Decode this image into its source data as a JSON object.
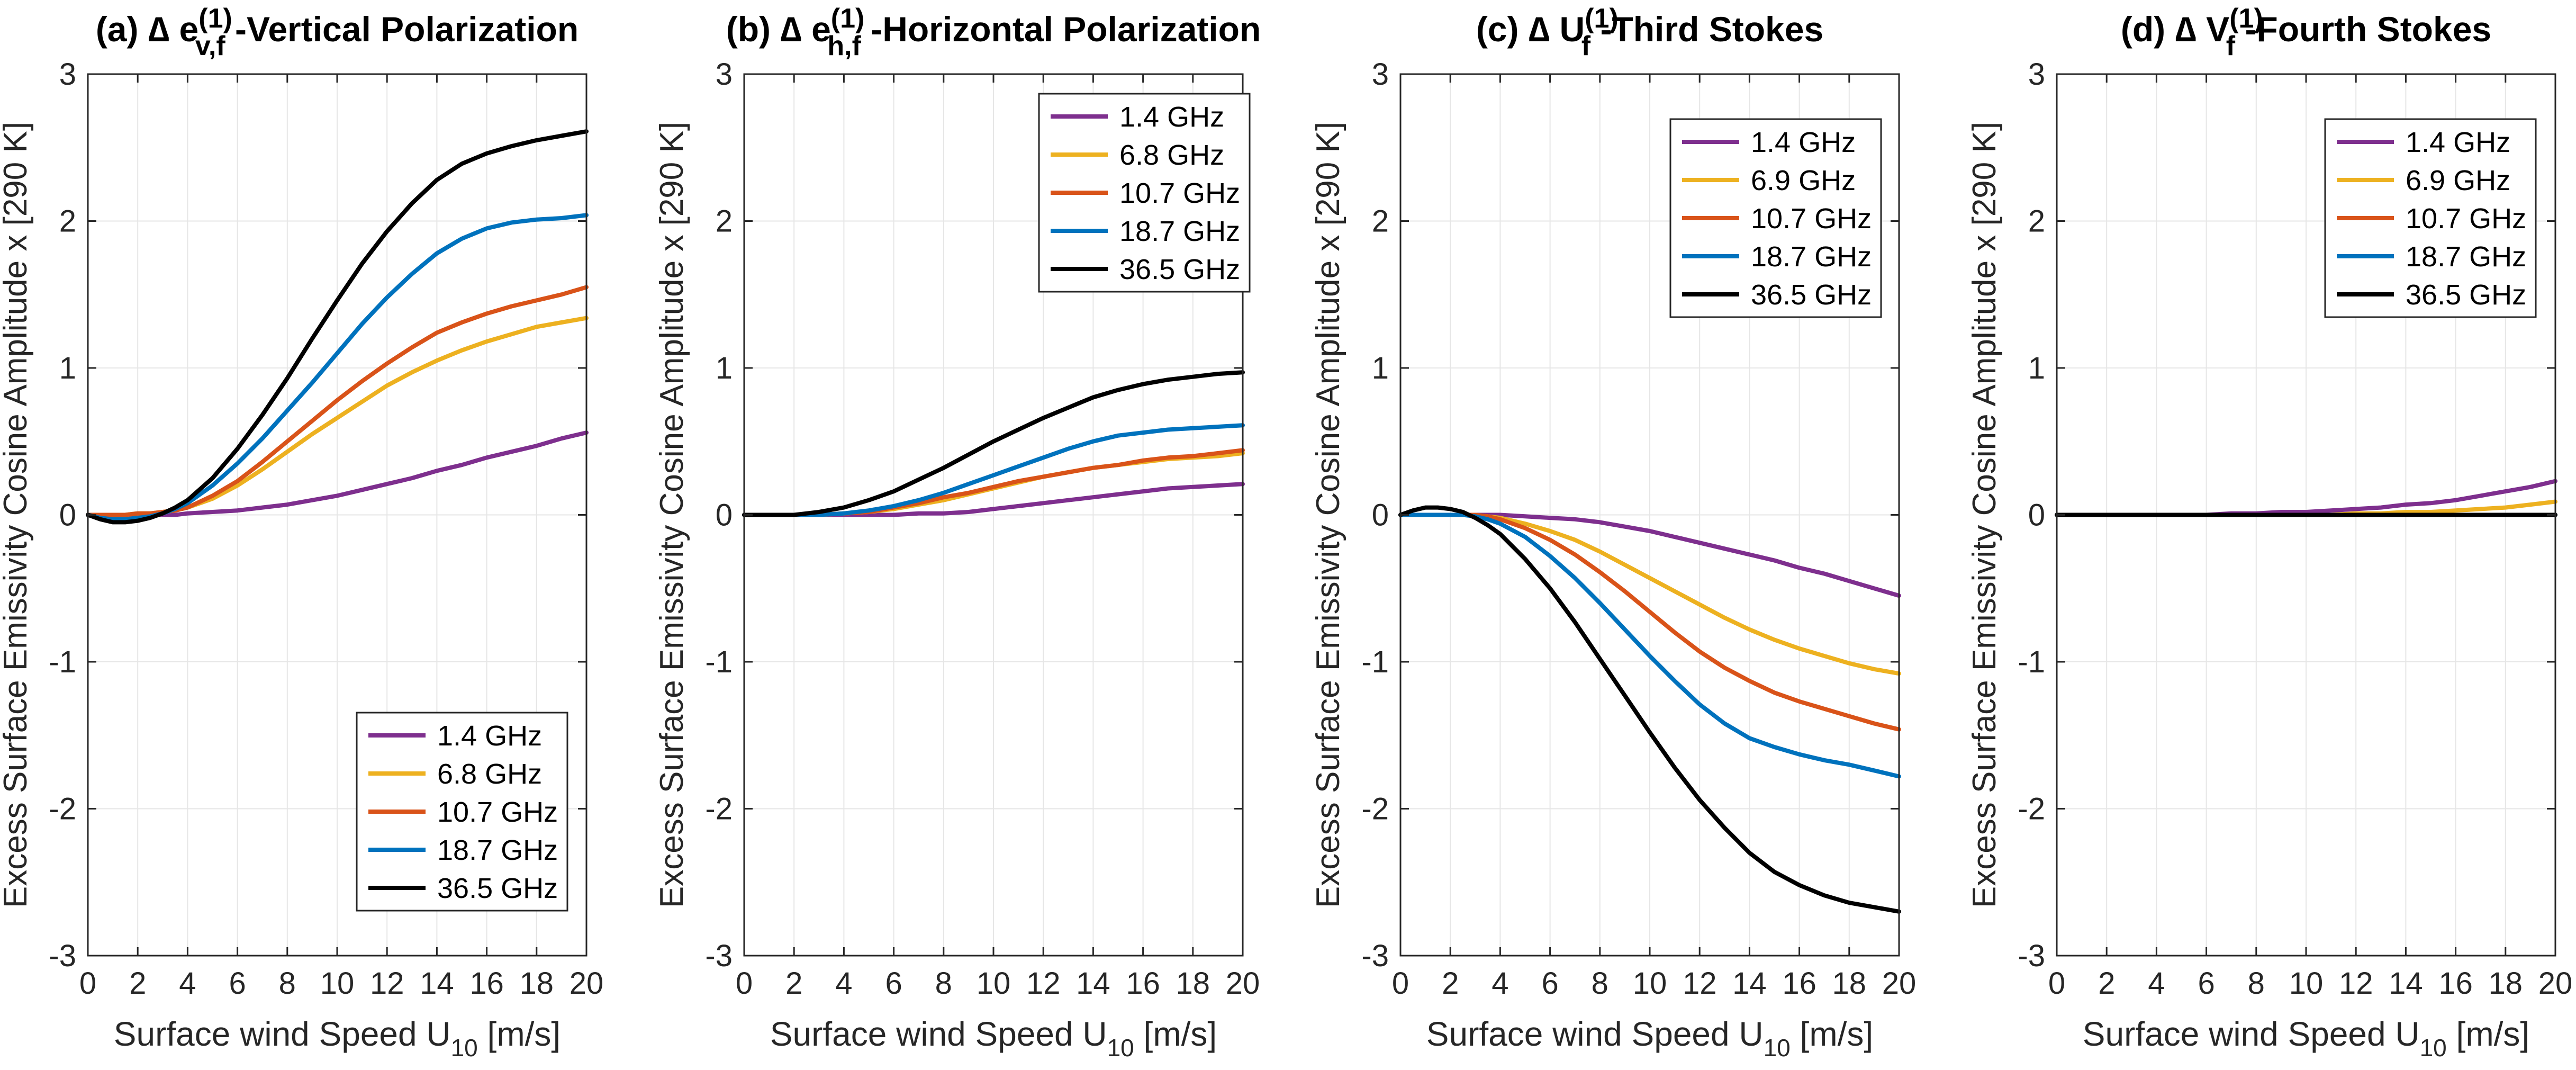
{
  "figure": {
    "colors": {
      "purple": "#7E2F8E",
      "yellow": "#EDB120",
      "orange": "#D95319",
      "blue": "#0072BD",
      "black": "#000000",
      "grid": "#E6E6E6",
      "axis": "#262626"
    }
  },
  "chart_data": [
    {
      "type": "line",
      "title": {
        "prefix": "(a) ∆ e",
        "sub": "v,f",
        "sup": "(1)",
        "suffix": " -Vertical Polarization"
      },
      "xlabel": {
        "main": "Surface wind Speed U",
        "sub": "10",
        "unit": " [m/s]"
      },
      "ylabel": "Excess Surface Emissivity Cosine Amplitude x [290 K]",
      "xlim": [
        0,
        20
      ],
      "ylim": [
        -3,
        3
      ],
      "xticks": [
        "0",
        "2",
        "4",
        "6",
        "8",
        "10",
        "12",
        "14",
        "16",
        "18",
        "20"
      ],
      "yticks": [
        "-3",
        "-2",
        "-1",
        "0",
        "1",
        "2",
        "3"
      ],
      "grid": true,
      "legend_position": "bottom-right",
      "x": [
        0,
        0.5,
        1,
        1.5,
        2,
        2.5,
        3,
        3.5,
        4,
        5,
        6,
        7,
        8,
        9,
        10,
        11,
        12,
        13,
        14,
        15,
        16,
        17,
        18,
        19,
        20
      ],
      "series": [
        {
          "name": "1.4 GHz",
          "color": "purple",
          "values": [
            0,
            0,
            0,
            0,
            0,
            0,
            0,
            0,
            0.01,
            0.02,
            0.03,
            0.05,
            0.07,
            0.1,
            0.13,
            0.17,
            0.21,
            0.25,
            0.3,
            0.34,
            0.39,
            0.43,
            0.47,
            0.52,
            0.56
          ]
        },
        {
          "name": "6.8 GHz",
          "color": "yellow",
          "values": [
            0,
            0,
            0,
            0,
            0.01,
            0.01,
            0.02,
            0.03,
            0.05,
            0.11,
            0.2,
            0.31,
            0.43,
            0.55,
            0.66,
            0.77,
            0.88,
            0.97,
            1.05,
            1.12,
            1.18,
            1.23,
            1.28,
            1.31,
            1.34
          ]
        },
        {
          "name": "10.7 GHz",
          "color": "orange",
          "values": [
            0,
            0,
            0,
            0,
            0.01,
            0.01,
            0.02,
            0.03,
            0.05,
            0.13,
            0.23,
            0.36,
            0.5,
            0.64,
            0.78,
            0.91,
            1.03,
            1.14,
            1.24,
            1.31,
            1.37,
            1.42,
            1.46,
            1.5,
            1.55
          ]
        },
        {
          "name": "18.7 GHz",
          "color": "blue",
          "values": [
            0,
            -0.02,
            -0.03,
            -0.03,
            -0.02,
            -0.01,
            0.01,
            0.04,
            0.08,
            0.2,
            0.35,
            0.52,
            0.71,
            0.9,
            1.1,
            1.3,
            1.48,
            1.64,
            1.78,
            1.88,
            1.95,
            1.99,
            2.01,
            2.02,
            2.04
          ]
        },
        {
          "name": "36.5 GHz",
          "color": "black",
          "values": [
            0,
            -0.03,
            -0.05,
            -0.05,
            -0.04,
            -0.02,
            0.01,
            0.05,
            0.1,
            0.25,
            0.45,
            0.68,
            0.93,
            1.2,
            1.46,
            1.71,
            1.93,
            2.12,
            2.28,
            2.39,
            2.46,
            2.51,
            2.55,
            2.58,
            2.61
          ]
        }
      ]
    },
    {
      "type": "line",
      "title": {
        "prefix": "(b) ∆ e",
        "sub": "h,f",
        "sup": "(1)",
        "suffix": " -Horizontal Polarization"
      },
      "xlabel": {
        "main": "Surface wind Speed U",
        "sub": "10",
        "unit": " [m/s]"
      },
      "ylabel": "Excess Surface Emissivity Cosine Amplitude x [290 K]",
      "xlim": [
        0,
        20
      ],
      "ylim": [
        -3,
        3
      ],
      "xticks": [
        "0",
        "2",
        "4",
        "6",
        "8",
        "10",
        "12",
        "14",
        "16",
        "18",
        "20"
      ],
      "yticks": [
        "-3",
        "-2",
        "-1",
        "0",
        "1",
        "2",
        "3"
      ],
      "grid": true,
      "legend_position": "top-right",
      "x": [
        0,
        1,
        2,
        3,
        4,
        5,
        6,
        7,
        8,
        9,
        10,
        11,
        12,
        13,
        14,
        15,
        16,
        17,
        18,
        19,
        20
      ],
      "series": [
        {
          "name": "1.4 GHz",
          "color": "purple",
          "values": [
            0,
            0,
            0,
            0,
            0,
            0,
            0,
            0.01,
            0.01,
            0.02,
            0.04,
            0.06,
            0.08,
            0.1,
            0.12,
            0.14,
            0.16,
            0.18,
            0.19,
            0.2,
            0.21
          ]
        },
        {
          "name": "6.8 GHz",
          "color": "yellow",
          "values": [
            0,
            0,
            0,
            0,
            0.01,
            0.02,
            0.04,
            0.07,
            0.1,
            0.14,
            0.18,
            0.22,
            0.26,
            0.29,
            0.32,
            0.34,
            0.36,
            0.38,
            0.39,
            0.4,
            0.42
          ]
        },
        {
          "name": "10.7 GHz",
          "color": "orange",
          "values": [
            0,
            0,
            0,
            0,
            0.01,
            0.02,
            0.05,
            0.08,
            0.12,
            0.15,
            0.19,
            0.23,
            0.26,
            0.29,
            0.32,
            0.34,
            0.37,
            0.39,
            0.4,
            0.42,
            0.44
          ]
        },
        {
          "name": "18.7 GHz",
          "color": "blue",
          "values": [
            0,
            0,
            0,
            0,
            0.01,
            0.03,
            0.06,
            0.1,
            0.15,
            0.21,
            0.27,
            0.33,
            0.39,
            0.45,
            0.5,
            0.54,
            0.56,
            0.58,
            0.59,
            0.6,
            0.61
          ]
        },
        {
          "name": "36.5 GHz",
          "color": "black",
          "values": [
            0,
            0,
            0,
            0.02,
            0.05,
            0.1,
            0.16,
            0.24,
            0.32,
            0.41,
            0.5,
            0.58,
            0.66,
            0.73,
            0.8,
            0.85,
            0.89,
            0.92,
            0.94,
            0.96,
            0.97
          ]
        }
      ]
    },
    {
      "type": "line",
      "title": {
        "prefix": "(c) ∆ U",
        "sub": "f",
        "sup": "(1)",
        "suffix": " -Third Stokes"
      },
      "xlabel": {
        "main": "Surface wind Speed U",
        "sub": "10",
        "unit": " [m/s]"
      },
      "ylabel": "Excess Surface Emissivity Cosine Amplitude x [290 K]",
      "xlim": [
        0,
        20
      ],
      "ylim": [
        -3,
        3
      ],
      "xticks": [
        "0",
        "2",
        "4",
        "6",
        "8",
        "10",
        "12",
        "14",
        "16",
        "18",
        "20"
      ],
      "yticks": [
        "-3",
        "-2",
        "-1",
        "0",
        "1",
        "2",
        "3"
      ],
      "grid": true,
      "legend_position": "top-right",
      "x": [
        0,
        0.5,
        1,
        1.5,
        2,
        2.5,
        3,
        3.5,
        4,
        5,
        6,
        7,
        8,
        9,
        10,
        11,
        12,
        13,
        14,
        15,
        16,
        17,
        18,
        19,
        20
      ],
      "series": [
        {
          "name": "1.4 GHz",
          "color": "purple",
          "values": [
            0,
            0,
            0,
            0,
            0,
            0,
            0,
            0,
            0,
            -0.01,
            -0.02,
            -0.03,
            -0.05,
            -0.08,
            -0.11,
            -0.15,
            -0.19,
            -0.23,
            -0.27,
            -0.31,
            -0.36,
            -0.4,
            -0.45,
            -0.5,
            -0.55
          ]
        },
        {
          "name": "6.9 GHz",
          "color": "yellow",
          "values": [
            0,
            0,
            0,
            0,
            0,
            0,
            0,
            -0.01,
            -0.02,
            -0.06,
            -0.11,
            -0.17,
            -0.25,
            -0.34,
            -0.43,
            -0.52,
            -0.61,
            -0.7,
            -0.78,
            -0.85,
            -0.91,
            -0.96,
            -1.01,
            -1.05,
            -1.08
          ]
        },
        {
          "name": "10.7 GHz",
          "color": "orange",
          "values": [
            0,
            0,
            0,
            0,
            0,
            0,
            0,
            -0.01,
            -0.03,
            -0.09,
            -0.17,
            -0.27,
            -0.39,
            -0.52,
            -0.66,
            -0.8,
            -0.93,
            -1.04,
            -1.13,
            -1.21,
            -1.27,
            -1.32,
            -1.37,
            -1.42,
            -1.46
          ]
        },
        {
          "name": "18.7 GHz",
          "color": "blue",
          "values": [
            0,
            0,
            0,
            0,
            0,
            0,
            -0.01,
            -0.03,
            -0.06,
            -0.15,
            -0.28,
            -0.43,
            -0.6,
            -0.78,
            -0.96,
            -1.13,
            -1.29,
            -1.42,
            -1.52,
            -1.58,
            -1.63,
            -1.67,
            -1.7,
            -1.74,
            -1.78
          ]
        },
        {
          "name": "36.5 GHz",
          "color": "black",
          "values": [
            0,
            0.03,
            0.05,
            0.05,
            0.04,
            0.02,
            -0.02,
            -0.07,
            -0.13,
            -0.3,
            -0.5,
            -0.73,
            -0.98,
            -1.23,
            -1.48,
            -1.72,
            -1.94,
            -2.13,
            -2.3,
            -2.43,
            -2.52,
            -2.59,
            -2.64,
            -2.67,
            -2.7
          ]
        }
      ]
    },
    {
      "type": "line",
      "title": {
        "prefix": "(d) ∆ V",
        "sub": "f",
        "sup": "(1)",
        "suffix": " -Fourth Stokes"
      },
      "xlabel": {
        "main": "Surface wind Speed U",
        "sub": "10",
        "unit": " [m/s]"
      },
      "ylabel": "Excess Surface Emissivity Cosine Amplitude x [290 K]",
      "xlim": [
        0,
        20
      ],
      "ylim": [
        -3,
        3
      ],
      "xticks": [
        "0",
        "2",
        "4",
        "6",
        "8",
        "10",
        "12",
        "14",
        "16",
        "18",
        "20"
      ],
      "yticks": [
        "-3",
        "-2",
        "-1",
        "0",
        "1",
        "2",
        "3"
      ],
      "grid": true,
      "legend_position": "top-right",
      "x": [
        0,
        1,
        2,
        3,
        4,
        5,
        6,
        7,
        8,
        9,
        10,
        11,
        12,
        13,
        14,
        15,
        16,
        17,
        18,
        19,
        20
      ],
      "series": [
        {
          "name": "1.4 GHz",
          "color": "purple",
          "values": [
            0,
            0,
            0,
            0,
            0,
            0,
            0,
            0.01,
            0.01,
            0.02,
            0.02,
            0.03,
            0.04,
            0.05,
            0.07,
            0.08,
            0.1,
            0.13,
            0.16,
            0.19,
            0.23
          ]
        },
        {
          "name": "6.9 GHz",
          "color": "yellow",
          "values": [
            0,
            0,
            0,
            0,
            0,
            0,
            0,
            0,
            0,
            0,
            0,
            0,
            0.01,
            0.01,
            0.02,
            0.02,
            0.03,
            0.04,
            0.05,
            0.07,
            0.09
          ]
        },
        {
          "name": "10.7 GHz",
          "color": "orange",
          "values": [
            0,
            0,
            0,
            0,
            0,
            0,
            0,
            0,
            0,
            0,
            0,
            0,
            0,
            0,
            0,
            0,
            0,
            0,
            0,
            0,
            0
          ]
        },
        {
          "name": "18.7 GHz",
          "color": "blue",
          "values": [
            0,
            0,
            0,
            0,
            0,
            0,
            0,
            0,
            0,
            0,
            0,
            0,
            0,
            0,
            0,
            0,
            0,
            0,
            0,
            0,
            0
          ]
        },
        {
          "name": "36.5 GHz",
          "color": "black",
          "values": [
            0,
            0,
            0,
            0,
            0,
            0,
            0,
            0,
            0,
            0,
            0,
            0,
            0,
            0,
            0,
            0,
            0,
            0,
            0,
            0,
            0
          ]
        }
      ]
    }
  ]
}
